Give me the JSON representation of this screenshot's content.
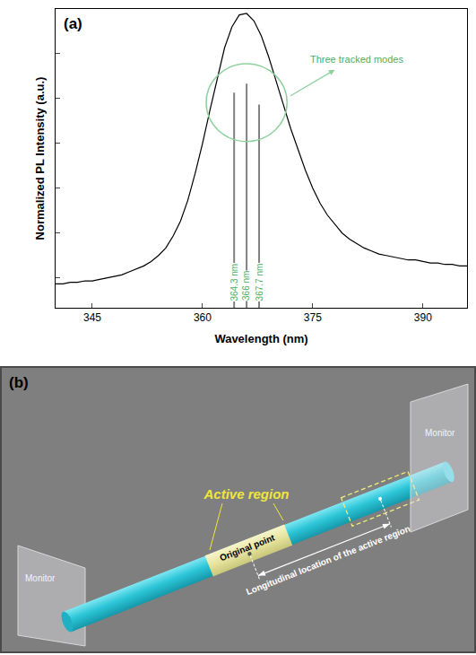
{
  "chart_data": {
    "type": "line",
    "panel_label": "(a)",
    "x_label": "Wavelength (nm)",
    "y_label": "Normalized PL Intensity (a.u.)",
    "x": [
      340,
      341,
      342,
      343,
      344,
      345,
      346,
      347,
      348,
      349,
      350,
      351,
      352,
      353,
      354,
      355,
      356,
      357,
      358,
      359,
      360,
      361,
      362,
      363,
      364,
      365,
      366,
      367,
      368,
      369,
      370,
      371,
      372,
      373,
      374,
      375,
      376,
      377,
      378,
      379,
      380,
      381,
      382,
      383,
      384,
      385,
      386,
      387,
      388,
      389,
      390,
      391,
      392,
      393,
      394,
      395,
      396
    ],
    "values": [
      0.08,
      0.08,
      0.085,
      0.085,
      0.09,
      0.09,
      0.095,
      0.1,
      0.105,
      0.11,
      0.12,
      0.13,
      0.14,
      0.155,
      0.175,
      0.2,
      0.24,
      0.29,
      0.36,
      0.45,
      0.55,
      0.66,
      0.77,
      0.87,
      0.94,
      0.98,
      0.985,
      0.96,
      0.91,
      0.84,
      0.76,
      0.68,
      0.6,
      0.53,
      0.46,
      0.4,
      0.35,
      0.31,
      0.28,
      0.25,
      0.23,
      0.215,
      0.2,
      0.19,
      0.18,
      0.175,
      0.17,
      0.165,
      0.16,
      0.16,
      0.155,
      0.15,
      0.15,
      0.145,
      0.145,
      0.14,
      0.14
    ],
    "color": "#000000",
    "xlim": [
      340,
      396
    ],
    "xticks": [
      345,
      360,
      375,
      390
    ],
    "ylim": [
      0,
      1
    ],
    "yticks": [
      0.1,
      0.25,
      0.4,
      0.55,
      0.7,
      0.85,
      1
    ],
    "tick_labels": "x",
    "grid": false,
    "modes": {
      "x": [
        364.3,
        366,
        367.7
      ],
      "values": [
        0.72,
        0.75,
        0.68
      ],
      "labels": [
        "364.3 nm",
        "366 nm",
        "367.7 nm"
      ],
      "color": "#808080"
    },
    "annotation": "Three tracked modes"
  },
  "diagram": {
    "panel_label": "(b)",
    "active_region": "Active region",
    "original_point": "Original point",
    "longitudinal": "Longitudinal location of the active region",
    "monitor_left": "Monitor",
    "monitor_right": "Monitor"
  }
}
